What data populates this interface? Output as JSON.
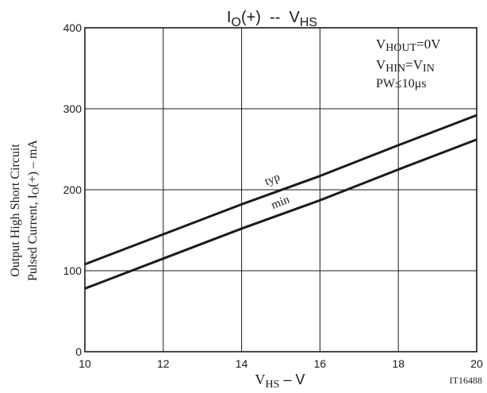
{
  "chart_data": {
    "type": "line",
    "title": "IO(+) -- VHS",
    "title_main": "I",
    "title_sub": "O",
    "title_rest": "(+)  --  V",
    "title_sub2": "HS",
    "xlabel_main": "V",
    "xlabel_sub": "HS",
    "xlabel_unit": " – V",
    "ylabel_line1": "Output High Short Circuit",
    "ylabel_line2_main": "Pulsed Current, I",
    "ylabel_line2_sub": "O",
    "ylabel_line2_rest": "(+) – mA",
    "xlim": [
      10,
      20
    ],
    "ylim": [
      0,
      400
    ],
    "xticks": [
      10,
      12,
      14,
      16,
      18,
      20
    ],
    "yticks": [
      0,
      100,
      200,
      300,
      400
    ],
    "grid": true,
    "series": [
      {
        "name": "typ",
        "x": [
          10,
          12,
          14,
          16,
          18,
          20
        ],
        "y": [
          108,
          145,
          182,
          217,
          255,
          292
        ]
      },
      {
        "name": "min",
        "x": [
          10,
          12,
          14,
          16,
          18,
          20
        ],
        "y": [
          78,
          115,
          152,
          187,
          225,
          262
        ]
      }
    ],
    "conditions": [
      {
        "main": "V",
        "sub": "HOUT",
        "rest": "=0V"
      },
      {
        "main": "V",
        "sub": "HIN",
        "rest": "=V",
        "sub2": "IN"
      },
      {
        "main": "PW≤10μs"
      }
    ],
    "figure_id": "IT16488",
    "colors": {
      "line": "#1a1a1a",
      "grid": "#1a1a1a",
      "text": "#1a1a1a"
    }
  }
}
